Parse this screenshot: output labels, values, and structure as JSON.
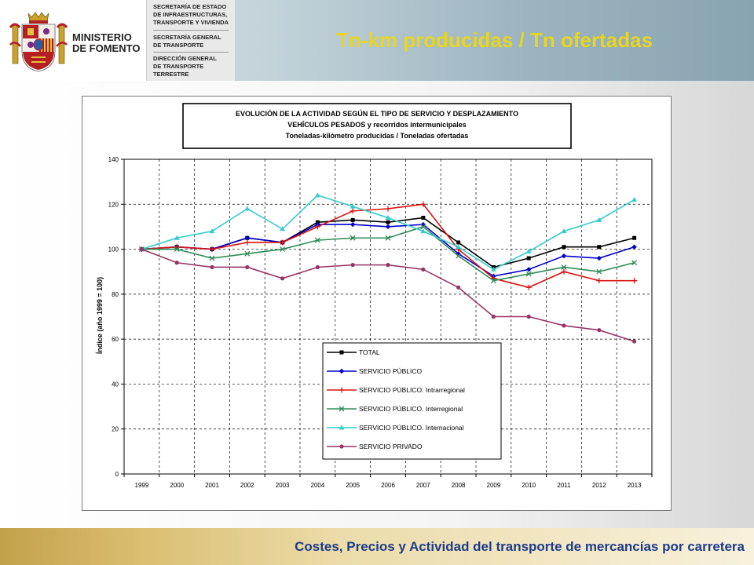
{
  "header": {
    "ministry_line1": "MINISTERIO",
    "ministry_line2": "DE FOMENTO",
    "secretariat_1": "SECRETARÍA DE ESTADO\nDE INFRAESTRUCTURAS,\nTRANSPORTE Y VIVIENDA",
    "secretariat_2": "SECRETARÍA GENERAL\nDE TRANSPORTE",
    "secretariat_3": "DIRECCIÓN GENERAL\nDE TRANSPORTE\nTERRESTRE",
    "slide_title": "Tn-km producidas / Tn ofertadas"
  },
  "footer": {
    "text": "Costes, Precios y Actividad del transporte de mercancías por carretera"
  },
  "colors": {
    "slide_title": "#e8d61e",
    "footer_text": "#1d3c8a"
  },
  "chart_data": {
    "type": "line",
    "title_lines": [
      "EVOLUCIÓN DE LA ACTIVIDAD SEGÚN EL TIPO DE SERVICIO Y DESPLAZAMIENTO",
      "VEHÍCULOS PESADOS y recorridos intermunicipales",
      "Toneladas-kilómetro producidas / Toneladas ofertadas"
    ],
    "xlabel": "",
    "ylabel": "Índice (año 1999 = 100)",
    "categories": [
      "1999",
      "2000",
      "2001",
      "2002",
      "2003",
      "2004",
      "2005",
      "2006",
      "2007",
      "2008",
      "2009",
      "2010",
      "2011",
      "2012",
      "2013"
    ],
    "ylim": [
      0,
      140
    ],
    "yticks": [
      0,
      20,
      40,
      60,
      80,
      100,
      120,
      140
    ],
    "grid": "dashed",
    "legend_position": "lower-center inside plot",
    "series": [
      {
        "name": "TOTAL",
        "color": "#000000",
        "marker": "square",
        "values": [
          100,
          101,
          100,
          105,
          103,
          112,
          113,
          112,
          114,
          103,
          92,
          96,
          101,
          101,
          105
        ]
      },
      {
        "name": "SERVICIO PÚBLICO",
        "color": "#0000cc",
        "marker": "diamond",
        "values": [
          100,
          101,
          100,
          105,
          103,
          111,
          111,
          110,
          111,
          98,
          88,
          91,
          97,
          96,
          101
        ]
      },
      {
        "name": "SERVICIO PÚBLICO. Intrarregional",
        "color": "#dd1111",
        "marker": "plus",
        "values": [
          100,
          101,
          100,
          103,
          103,
          110,
          117,
          118,
          120,
          100,
          87,
          83,
          90,
          86,
          86
        ]
      },
      {
        "name": "SERVICIO PÚBLICO. Interregional",
        "color": "#2e8b57",
        "marker": "x",
        "values": [
          100,
          100,
          96,
          98,
          100,
          104,
          105,
          105,
          110,
          97,
          86,
          89,
          92,
          90,
          94
        ]
      },
      {
        "name": "SERVICIO PÚBLICO. Internacional",
        "color": "#33cccc",
        "marker": "triangle",
        "values": [
          100,
          105,
          108,
          118,
          109,
          124,
          119,
          114,
          108,
          101,
          91,
          99,
          108,
          113,
          122
        ]
      },
      {
        "name": "SERVICIO PRIVADO",
        "color": "#993366",
        "marker": "circle",
        "values": [
          100,
          94,
          92,
          92,
          87,
          92,
          93,
          93,
          91,
          83,
          70,
          70,
          66,
          64,
          59
        ]
      }
    ]
  }
}
